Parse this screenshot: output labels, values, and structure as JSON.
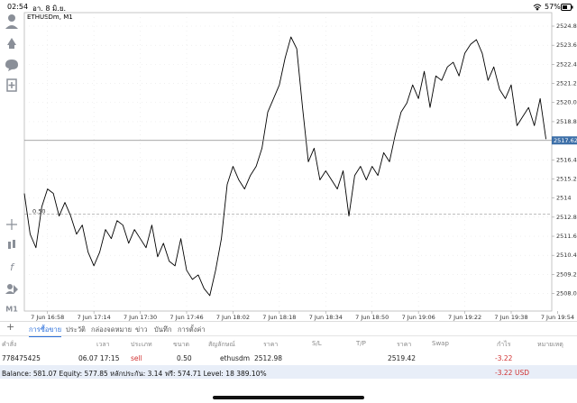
{
  "status_bar": {
    "time": "02:54",
    "date": "อา. 8 มิ.ย.",
    "battery": "57%"
  },
  "chart_data": {
    "type": "line",
    "title": "ETHUSDm, M1",
    "color": "#000000",
    "values": [
      2514.29,
      2511.73,
      2510.88,
      2513.44,
      2514.57,
      2514.29,
      2512.87,
      2513.72,
      2512.87,
      2511.73,
      2512.3,
      2510.6,
      2509.74,
      2510.6,
      2512.02,
      2511.45,
      2512.58,
      2512.3,
      2511.16,
      2512.02,
      2511.45,
      2510.88,
      2512.3,
      2510.31,
      2511.16,
      2510.03,
      2509.74,
      2511.45,
      2509.46,
      2508.89,
      2509.17,
      2508.32,
      2507.87,
      2509.46,
      2511.45,
      2514.86,
      2515.99,
      2515.14,
      2514.57,
      2515.42,
      2515.99,
      2517.13,
      2519.4,
      2520.25,
      2521.11,
      2522.81,
      2524.12,
      2523.38,
      2519.69,
      2516.28,
      2517.13,
      2515.14,
      2515.71,
      2515.14,
      2514.57,
      2515.71,
      2512.87,
      2515.42,
      2515.99,
      2515.14,
      2515.99,
      2515.42,
      2516.85,
      2516.28,
      2517.98,
      2519.4,
      2519.97,
      2521.11,
      2520.25,
      2521.96,
      2519.69,
      2521.67,
      2521.39,
      2522.24,
      2522.53,
      2521.67,
      2523.1,
      2523.66,
      2523.95,
      2523.1,
      2521.39,
      2522.24,
      2520.82,
      2520.25,
      2521.11,
      2518.55,
      2519.12,
      2519.69,
      2518.55,
      2520.25,
      2517.7
    ],
    "xlim": [
      0,
      91
    ],
    "xticks": [
      {
        "value": 4,
        "label": "7 Jun 16:58"
      },
      {
        "value": 12,
        "label": "7 Jun 17:14"
      },
      {
        "value": 20,
        "label": "7 Jun 17:30"
      },
      {
        "value": 28,
        "label": "7 Jun 17:46"
      },
      {
        "value": 36,
        "label": "7 Jun 18:02"
      },
      {
        "value": 44,
        "label": "7 Jun 18:18"
      },
      {
        "value": 52,
        "label": "7 Jun 18:34"
      },
      {
        "value": 60,
        "label": "7 Jun 18:50"
      },
      {
        "value": 68,
        "label": "7 Jun 19:06"
      },
      {
        "value": 76,
        "label": "7 Jun 19:22"
      },
      {
        "value": 84,
        "label": "7 Jun 19:38"
      },
      {
        "value": 92,
        "label": "7 Jun 19:54"
      }
    ],
    "ylim": [
      2506.9,
      2525.65
    ],
    "yticks": [
      {
        "value": 2508,
        "label": "2508.00"
      },
      {
        "value": 2509.2,
        "label": "2509.20"
      },
      {
        "value": 2510.4,
        "label": "2510.40"
      },
      {
        "value": 2511.6,
        "label": "2511.60"
      },
      {
        "value": 2512.8,
        "label": "2512.80"
      },
      2514,
      {
        "value": 2515.2,
        "label": "2515.20"
      },
      {
        "value": 2516.4,
        "label": "2516.40"
      },
      {
        "value": 2518.8,
        "label": "2518.80"
      },
      {
        "value": 2520,
        "label": "2520.00"
      },
      {
        "value": 2521.2,
        "label": "2521.20"
      },
      {
        "value": 2522.4,
        "label": "2522.40"
      },
      {
        "value": 2523.6,
        "label": "2523.60"
      },
      {
        "value": 2524.8,
        "label": "2524.80"
      }
    ],
    "grid": true,
    "current_price": 2517.62,
    "order_line": {
      "price": 2512.98,
      "label": "0.50"
    },
    "timeframe": "M1"
  },
  "terminal": {
    "tabs": [
      "การซื้อขาย",
      "ประวัติ",
      "กล่องจดหมาย",
      "ข่าว",
      "บันทึก",
      "การตั้งค่า"
    ],
    "columns": [
      "คำสั่ง",
      "เวลา",
      "ประเภท",
      "ขนาด",
      "สัญลักษณ์",
      "ราคา",
      "S/L",
      "T/P",
      "ราคา",
      "Swap",
      "กำไร",
      "หมายเหตุ"
    ],
    "row": {
      "order": "778475425",
      "time": "06.07 17:15",
      "type": "sell",
      "volume": "0.50",
      "symbol": "ethusdm",
      "open_price": "2512.98",
      "price": "2519.42",
      "profit": "-3.22"
    },
    "balance": {
      "summary": "Balance: 581.07 Equity: 577.85 หลักประกัน: 3.14 ฟรี: 574.71 Level: 18 389.10%",
      "profit": "-3.22",
      "currency": "USD"
    }
  }
}
